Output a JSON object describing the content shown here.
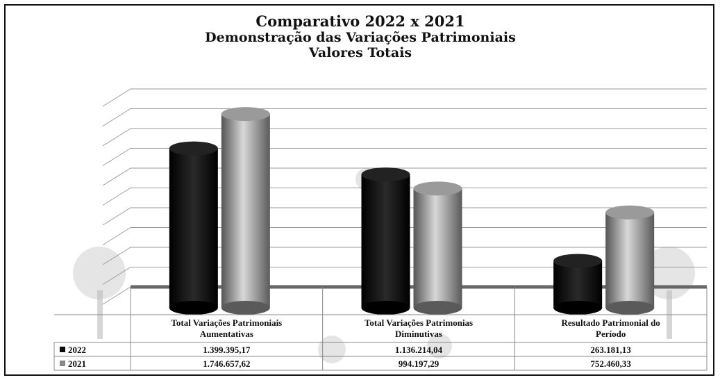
{
  "chart_data": {
    "type": "bar",
    "title_lines": [
      "Comparativo  2022 x 2021",
      "Demonstração das Variações Patrimoniais",
      "Valores Totais"
    ],
    "categories": [
      [
        "Total Variações Patrimoniais",
        "Aumentativas"
      ],
      [
        "Total Variações Patrimonias",
        "Diminutivas"
      ],
      [
        "Resultado Patrimonial do",
        "Período"
      ]
    ],
    "series": [
      {
        "name": "2022",
        "values": [
          1399395.17,
          1136214.04,
          263181.13
        ],
        "labels": [
          "1.399.395,17",
          "1.136.214,04",
          "263.181,13"
        ],
        "color": "#0b0b0b"
      },
      {
        "name": "2021",
        "values": [
          1746657.62,
          994197.29,
          752460.33
        ],
        "labels": [
          "1.746.657,62",
          "994.197,29",
          "752.460,33"
        ],
        "color": "#8a8a8a"
      }
    ],
    "ylim": [
      0,
      2000000
    ],
    "grid": true,
    "legend": "data-table",
    "xlabel": "",
    "ylabel": ""
  }
}
